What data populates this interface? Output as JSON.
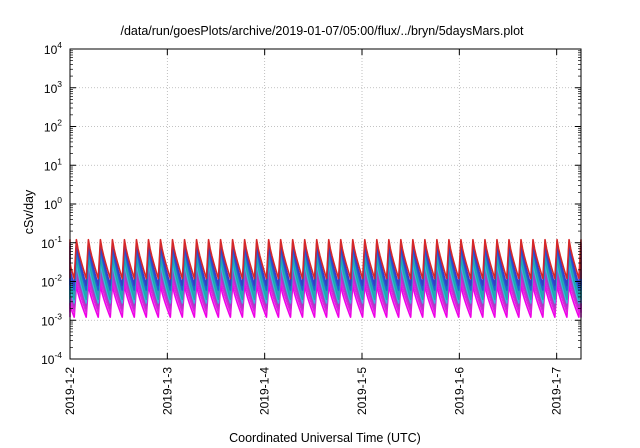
{
  "chart_data": {
    "type": "line",
    "title": "/data/run/goesPlots/archive/2019-01-07/05:00/flux/../bryn/5daysMars.plot",
    "xlabel": "Coordinated Universal Time (UTC)",
    "ylabel": "cSv/day",
    "y_scale": "log",
    "ylim": [
      0.0001,
      10000
    ],
    "x_start": "2019-01-02",
    "x_end": "2019-01-07T06:00",
    "grid": true,
    "legend": "none",
    "x_ticks": [
      "2019-1-2",
      "2019-1-3",
      "2019-1-4",
      "2019-1-5",
      "2019-1-6",
      "2019-1-7"
    ],
    "y_ticks": [
      {
        "base": "10",
        "exp": "-4"
      },
      {
        "base": "10",
        "exp": "-3"
      },
      {
        "base": "10",
        "exp": "-2"
      },
      {
        "base": "10",
        "exp": "-1"
      },
      {
        "base": "10",
        "exp": "0"
      },
      {
        "base": "10",
        "exp": "1"
      },
      {
        "base": "10",
        "exp": "2"
      },
      {
        "base": "10",
        "exp": "3"
      },
      {
        "base": "10",
        "exp": "4"
      }
    ],
    "cycles_per_day": 8.1,
    "series": [
      {
        "color": "#d62728",
        "peak": 0.12,
        "trough": 0.012
      },
      {
        "color": "#3b3bc4",
        "peak": 0.1,
        "trough": 0.008
      },
      {
        "color": "#1f5fd6",
        "peak": 0.08,
        "trough": 0.006
      },
      {
        "color": "#2aa0b8",
        "peak": 0.06,
        "trough": 0.0045
      },
      {
        "color": "#17b0a8",
        "peak": 0.045,
        "trough": 0.0035
      },
      {
        "color": "#3fb4e0",
        "peak": 0.032,
        "trough": 0.0028
      },
      {
        "color": "#a040c0",
        "peak": 0.024,
        "trough": 0.0024
      },
      {
        "color": "#c030c8",
        "peak": 0.018,
        "trough": 0.002
      },
      {
        "color": "#e020e0",
        "peak": 0.012,
        "trough": 0.0016
      },
      {
        "color": "#f000e8",
        "peak": 0.008,
        "trough": 0.0012
      }
    ]
  }
}
